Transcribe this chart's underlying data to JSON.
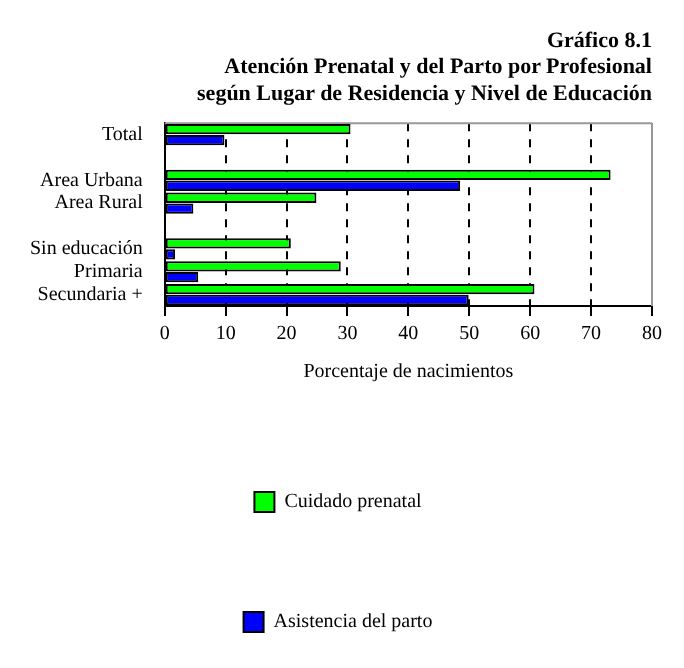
{
  "chart_data": {
    "type": "bar",
    "orientation": "horizontal",
    "title": "Gráfico 8.1\nAtención Prenatal y del Parto por Profesional\nsegún Lugar de Residencia y Nivel de Educación",
    "xlabel": "Porcentaje de nacimientos",
    "categories": [
      "Total",
      null,
      "Area Urbana",
      "Area Rural",
      null,
      "Sin educación",
      "Primaria",
      "Secundaria +"
    ],
    "series": [
      {
        "name": "Cuidado prenatal",
        "color": "#00ff00",
        "values": [
          30.5,
          null,
          73.2,
          24.9,
          null,
          20.7,
          28.9,
          60.7
        ]
      },
      {
        "name": "Asistencia del parto",
        "color": "#0000ff",
        "values": [
          9.8,
          null,
          48.5,
          4.7,
          null,
          1.7,
          5.5,
          49.9
        ]
      }
    ],
    "xlim": [
      0,
      80
    ],
    "xticks": [
      0,
      10,
      20,
      30,
      40,
      50,
      60,
      70,
      80
    ],
    "grid": "x",
    "legend": "bottom"
  }
}
